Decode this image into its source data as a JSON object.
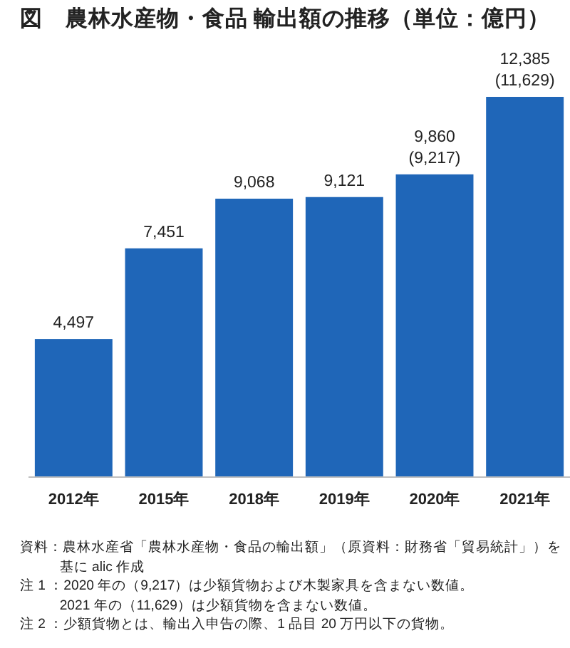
{
  "chart_data": {
    "type": "bar",
    "title": "図　農林水産物・食品 輸出額の推移（単位：億円）",
    "categories": [
      "2012年",
      "2015年",
      "2018年",
      "2019年",
      "2020年",
      "2021年"
    ],
    "values": [
      4497,
      7451,
      9068,
      9121,
      9860,
      12385
    ],
    "value_labels": [
      "4,497",
      "7,451",
      "9,068",
      "9,121",
      "9,860 (9,217)",
      "12,385 (11,629)"
    ],
    "color": "#1f66b8",
    "annotations": [
      "資料：農林水産省「農林水産物・食品の輸出額」（原資料：財務省「貿易統計」）を基に alic 作成",
      "注 1 ：2020 年の（9,217）は少額貨物および木製家具を含まない数値。",
      "2021 年の（11,629）は少額貨物を含まない数値。",
      "注 2 ：少額貨物とは、輸出入申告の際、1 品目 20 万円以下の貨物。"
    ]
  }
}
